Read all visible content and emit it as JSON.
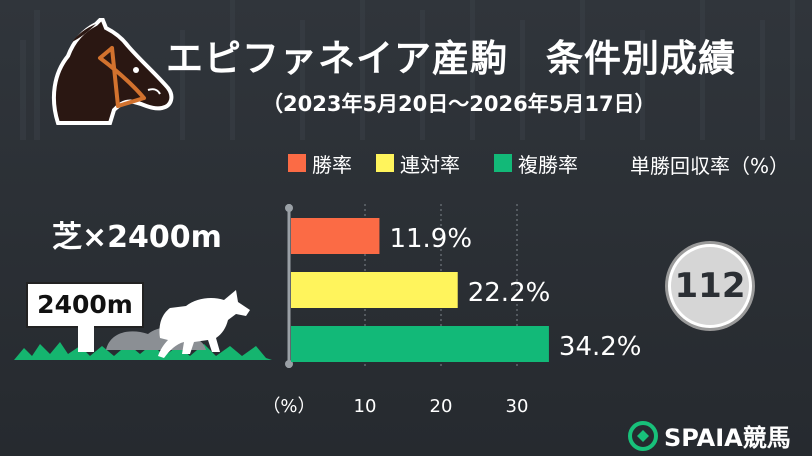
{
  "header": {
    "title": "エピファネイア産駒　条件別成績",
    "subtitle": "（2023年5月20日〜2026年5月17日）"
  },
  "legend": [
    {
      "label": "勝率",
      "color": "#fb6b45"
    },
    {
      "label": "連対率",
      "color": "#fff45c"
    },
    {
      "label": "複勝率",
      "color": "#12b978"
    }
  ],
  "note": "単勝回収率（%）",
  "course": {
    "label": "芝×2400m",
    "sign": "2400m"
  },
  "badge": {
    "value": "112"
  },
  "chart_data": {
    "type": "bar",
    "orientation": "horizontal",
    "categories": [
      "勝率",
      "連対率",
      "複勝率"
    ],
    "values": [
      11.9,
      22.2,
      34.2
    ],
    "value_labels": [
      "11.9%",
      "22.2%",
      "34.2%"
    ],
    "colors": [
      "#fb6b45",
      "#fff45c",
      "#12b978"
    ],
    "xlim": [
      0,
      34.2
    ],
    "xticks": [
      10,
      20,
      30
    ],
    "xlabel": "（%）",
    "grid": true
  },
  "brand": {
    "name": "SPAIA競馬"
  }
}
